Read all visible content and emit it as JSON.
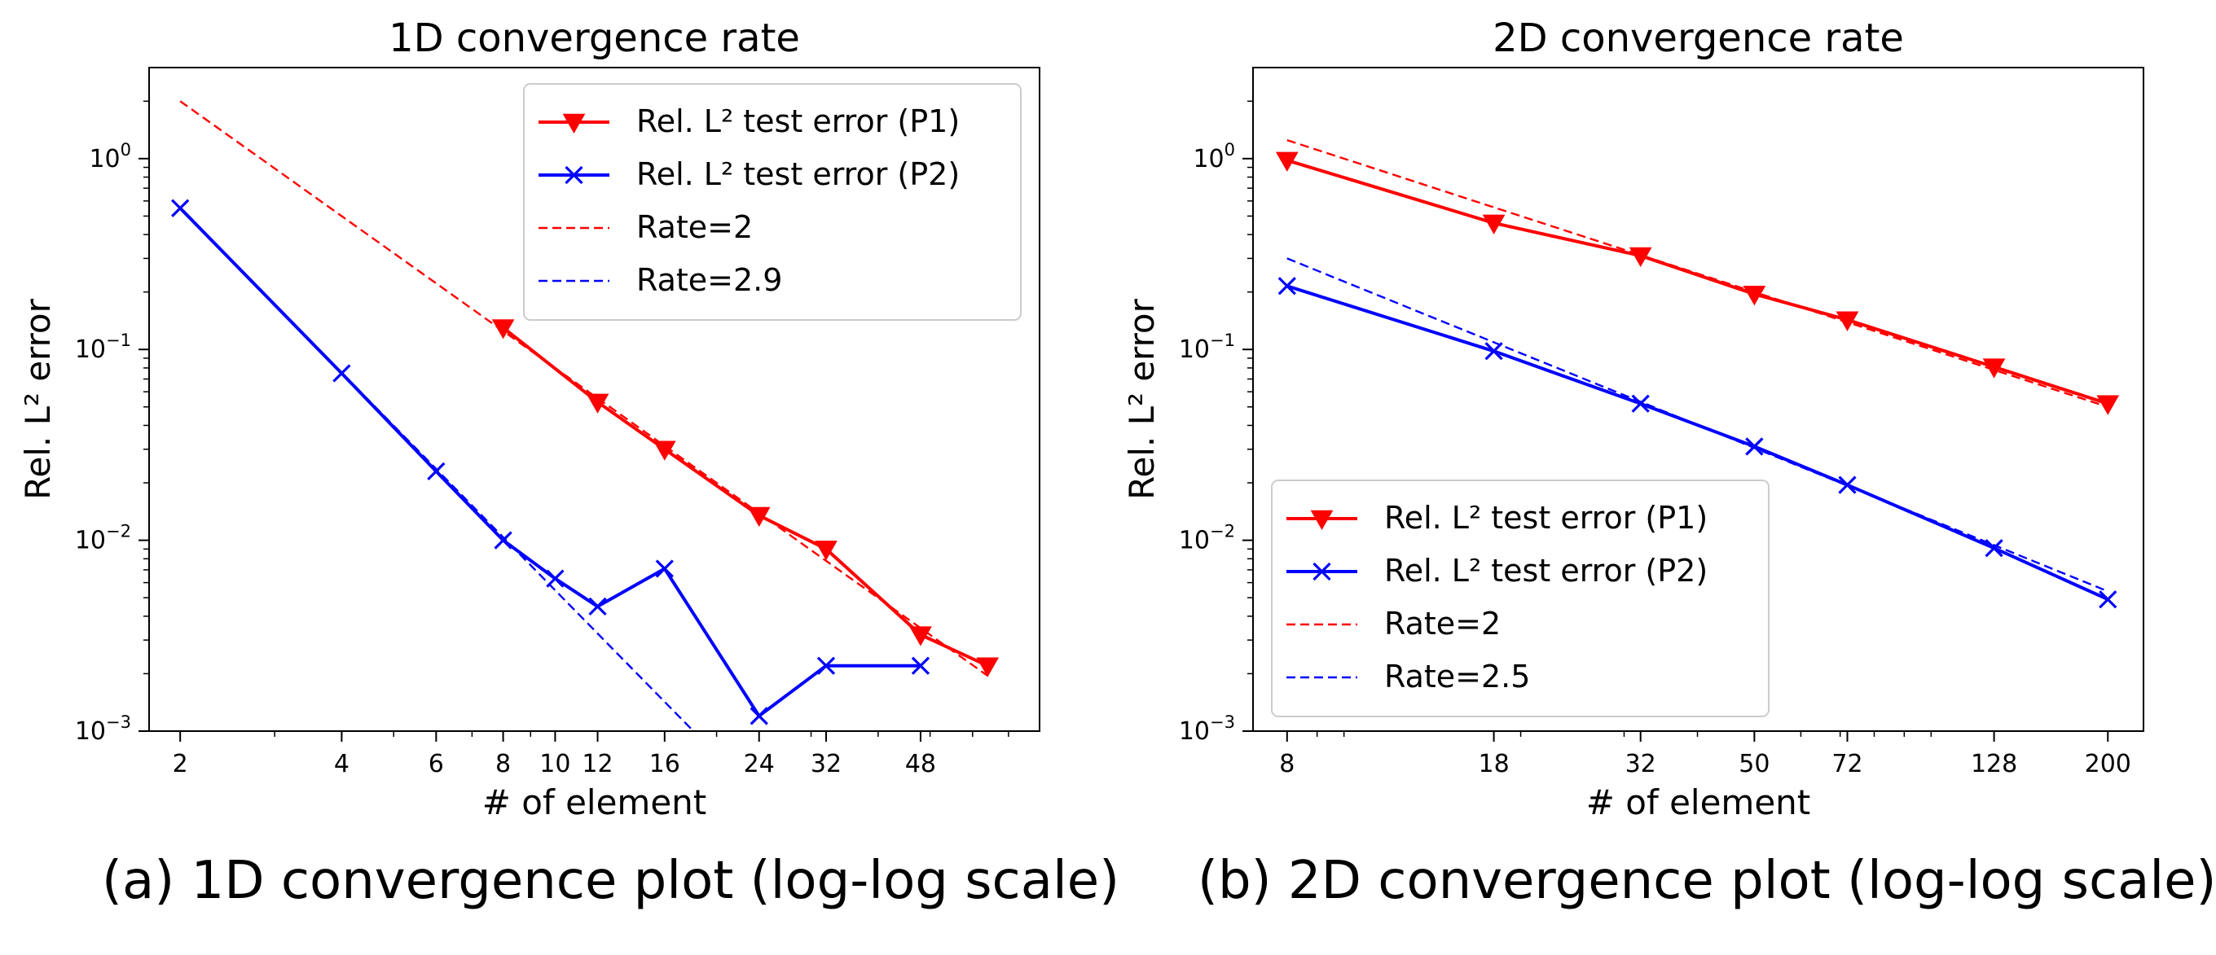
{
  "captions": {
    "a": "(a) 1D convergence plot (log-log scale)",
    "b": "(b) 2D convergence plot (log-log scale)"
  },
  "chart_data": [
    {
      "type": "line",
      "title": "1D convergence rate",
      "xlabel": "# of element",
      "ylabel": "Rel. L² error",
      "xscale": "log",
      "yscale": "log",
      "xticks": [
        2,
        4,
        6,
        8,
        10,
        12,
        16,
        24,
        32,
        48
      ],
      "yticks": [
        0.001,
        0.01,
        0.1,
        1
      ],
      "ytick_labels": [
        [
          "10",
          "−3"
        ],
        [
          "10",
          "−2"
        ],
        [
          "10",
          "−1"
        ],
        [
          "10",
          "0"
        ]
      ],
      "xlim": [
        1.75,
        80
      ],
      "ylim": [
        0.001,
        3.0
      ],
      "grid": false,
      "legend_position": "top-right",
      "series": [
        {
          "name": "Rel. L² test error (P1)",
          "color": "#ff0000",
          "style": "solid",
          "marker": "triangle-down",
          "x": [
            8,
            12,
            16,
            24,
            32,
            48,
            64
          ],
          "y": [
            0.13,
            0.053,
            0.03,
            0.0135,
            0.009,
            0.0032,
            0.0022
          ]
        },
        {
          "name": "Rel. L² test error (P2)",
          "color": "#0000ff",
          "style": "solid",
          "marker": "x",
          "x": [
            2,
            4,
            6,
            8,
            10,
            12,
            16,
            24,
            32,
            48
          ],
          "y": [
            0.55,
            0.075,
            0.023,
            0.01,
            0.0063,
            0.0045,
            0.0071,
            0.0012,
            0.0022,
            0.0022
          ]
        },
        {
          "name": "Rate=2",
          "color": "#ff0000",
          "style": "dashed",
          "marker": "none",
          "x": [
            2,
            64
          ],
          "y": [
            2.0,
            0.00195
          ]
        },
        {
          "name": "Rate=2.9",
          "color": "#0000ff",
          "style": "dashed",
          "marker": "none",
          "x": [
            2,
            18.1
          ],
          "y": [
            0.55,
            0.001
          ]
        }
      ]
    },
    {
      "type": "line",
      "title": "2D convergence rate",
      "xlabel": "# of element",
      "ylabel": "Rel. L² error",
      "xscale": "log",
      "yscale": "log",
      "xticks": [
        8,
        18,
        32,
        50,
        72,
        128,
        200
      ],
      "yticks": [
        0.001,
        0.01,
        0.1,
        1
      ],
      "ytick_labels": [
        [
          "10",
          "−3"
        ],
        [
          "10",
          "−2"
        ],
        [
          "10",
          "−1"
        ],
        [
          "10",
          "0"
        ]
      ],
      "xlim": [
        7.0,
        230
      ],
      "ylim": [
        0.001,
        3.0
      ],
      "grid": false,
      "legend_position": "bottom-left",
      "series": [
        {
          "name": "Rel. L² test error (P1)",
          "color": "#ff0000",
          "style": "solid",
          "marker": "triangle-down",
          "x": [
            8,
            18,
            32,
            50,
            72,
            128,
            200
          ],
          "y": [
            0.98,
            0.46,
            0.31,
            0.195,
            0.143,
            0.081,
            0.052
          ]
        },
        {
          "name": "Rel. L² test error (P2)",
          "color": "#0000ff",
          "style": "solid",
          "marker": "x",
          "x": [
            8,
            18,
            32,
            50,
            72,
            128,
            200
          ],
          "y": [
            0.215,
            0.098,
            0.052,
            0.031,
            0.0195,
            0.0091,
            0.0049
          ]
        },
        {
          "name": "Rate=2",
          "color": "#ff0000",
          "style": "dashed",
          "marker": "none",
          "x": [
            8,
            200
          ],
          "y": [
            1.25,
            0.05
          ]
        },
        {
          "name": "Rate=2.5",
          "color": "#0000ff",
          "style": "dashed",
          "marker": "none",
          "x": [
            8,
            200
          ],
          "y": [
            0.3,
            0.0054
          ]
        }
      ]
    }
  ]
}
